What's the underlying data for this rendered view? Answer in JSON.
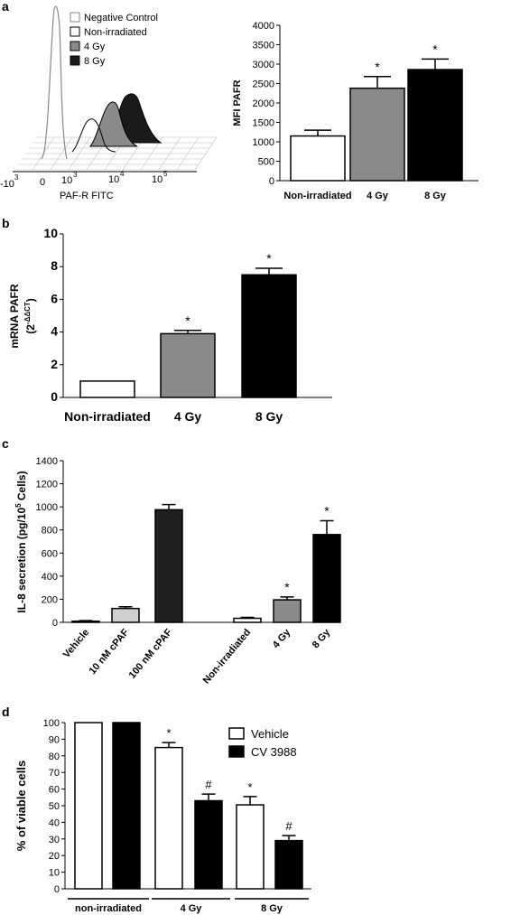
{
  "chart_data": [
    {
      "panel": "a",
      "type": "histogram",
      "xlabel": "PAF-R FITC",
      "x_ticks": [
        "-10",
        "3",
        "0",
        "10",
        "3",
        "10",
        "4",
        "10",
        "5"
      ],
      "legend": [
        {
          "name": "Negative Control",
          "fill": "#ffffff",
          "stroke": "#8a8a8a"
        },
        {
          "name": "Non-irradiated",
          "fill": "#ffffff",
          "stroke": "#000000"
        },
        {
          "name": "4 Gy",
          "fill": "#8a8a8a",
          "stroke": "#000000"
        },
        {
          "name": "8 Gy",
          "fill": "#1a1a1a",
          "stroke": "#000000"
        }
      ]
    },
    {
      "panel": "a",
      "type": "bar",
      "ylabel": "MFI PAFR",
      "ylim": [
        0,
        4000
      ],
      "y_ticks": [
        0,
        500,
        1000,
        1500,
        2000,
        2500,
        3000,
        3500,
        4000
      ],
      "categories": [
        "Non-irradiated",
        "4 Gy",
        "8 Gy"
      ],
      "values": [
        1150,
        2380,
        2860
      ],
      "errors": [
        150,
        300,
        270
      ],
      "colors": [
        "#ffffff",
        "#8a8a8a",
        "#000000"
      ],
      "significance": [
        "",
        "*",
        "*"
      ]
    },
    {
      "panel": "b",
      "type": "bar",
      "ylabel": "mRNA PAFR",
      "ylabel_sub": "(2",
      "ylabel_sup": "-ΔΔCT",
      "ylabel_close": ")",
      "ylim": [
        0,
        10
      ],
      "y_ticks": [
        0,
        2,
        4,
        6,
        8,
        10
      ],
      "categories": [
        "Non-irradiated",
        "4 Gy",
        "8 Gy"
      ],
      "values": [
        1.0,
        3.9,
        7.5
      ],
      "errors": [
        0,
        0.2,
        0.4
      ],
      "colors": [
        "#ffffff",
        "#8a8a8a",
        "#000000"
      ],
      "significance": [
        "",
        "*",
        "*"
      ]
    },
    {
      "panel": "c",
      "type": "bar",
      "ylabel": "IL-8 secretion (pg/10",
      "ylabel_sup": "5",
      "ylabel_close": " Cells)",
      "ylim": [
        0,
        1400
      ],
      "y_ticks": [
        0,
        200,
        400,
        600,
        800,
        1000,
        1200,
        1400
      ],
      "categories": [
        "Vehicle",
        "10 nM cPAF",
        "100 nM cPAF",
        "Non-irradiated",
        "4 Gy",
        "8 Gy"
      ],
      "values": [
        10,
        120,
        975,
        35,
        195,
        760
      ],
      "errors": [
        5,
        15,
        45,
        8,
        25,
        120
      ],
      "colors": [
        "#ffffff",
        "#cfcfcf",
        "#1f1f1f",
        "#ffffff",
        "#8a8a8a",
        "#000000"
      ],
      "significance": [
        "",
        "",
        "",
        "",
        "*",
        "*"
      ]
    },
    {
      "panel": "d",
      "type": "bar",
      "ylabel": "% of viable cells",
      "ylim": [
        0,
        100
      ],
      "y_ticks": [
        0,
        10,
        20,
        30,
        40,
        50,
        60,
        70,
        80,
        90,
        100
      ],
      "groups": [
        "non-irradiated",
        "4 Gy",
        "8 Gy"
      ],
      "series": [
        {
          "name": "Vehicle",
          "values": [
            100,
            85,
            50.5
          ],
          "errors": [
            0,
            3,
            5
          ],
          "color": "#ffffff",
          "significance": [
            "",
            "*",
            "*"
          ]
        },
        {
          "name": "CV 3988",
          "values": [
            100,
            53,
            29
          ],
          "errors": [
            0,
            4,
            3
          ],
          "color": "#000000",
          "significance": [
            "",
            "#",
            "#"
          ]
        }
      ]
    }
  ],
  "panels": {
    "a": "a",
    "b": "b",
    "c": "c",
    "d": "d"
  }
}
